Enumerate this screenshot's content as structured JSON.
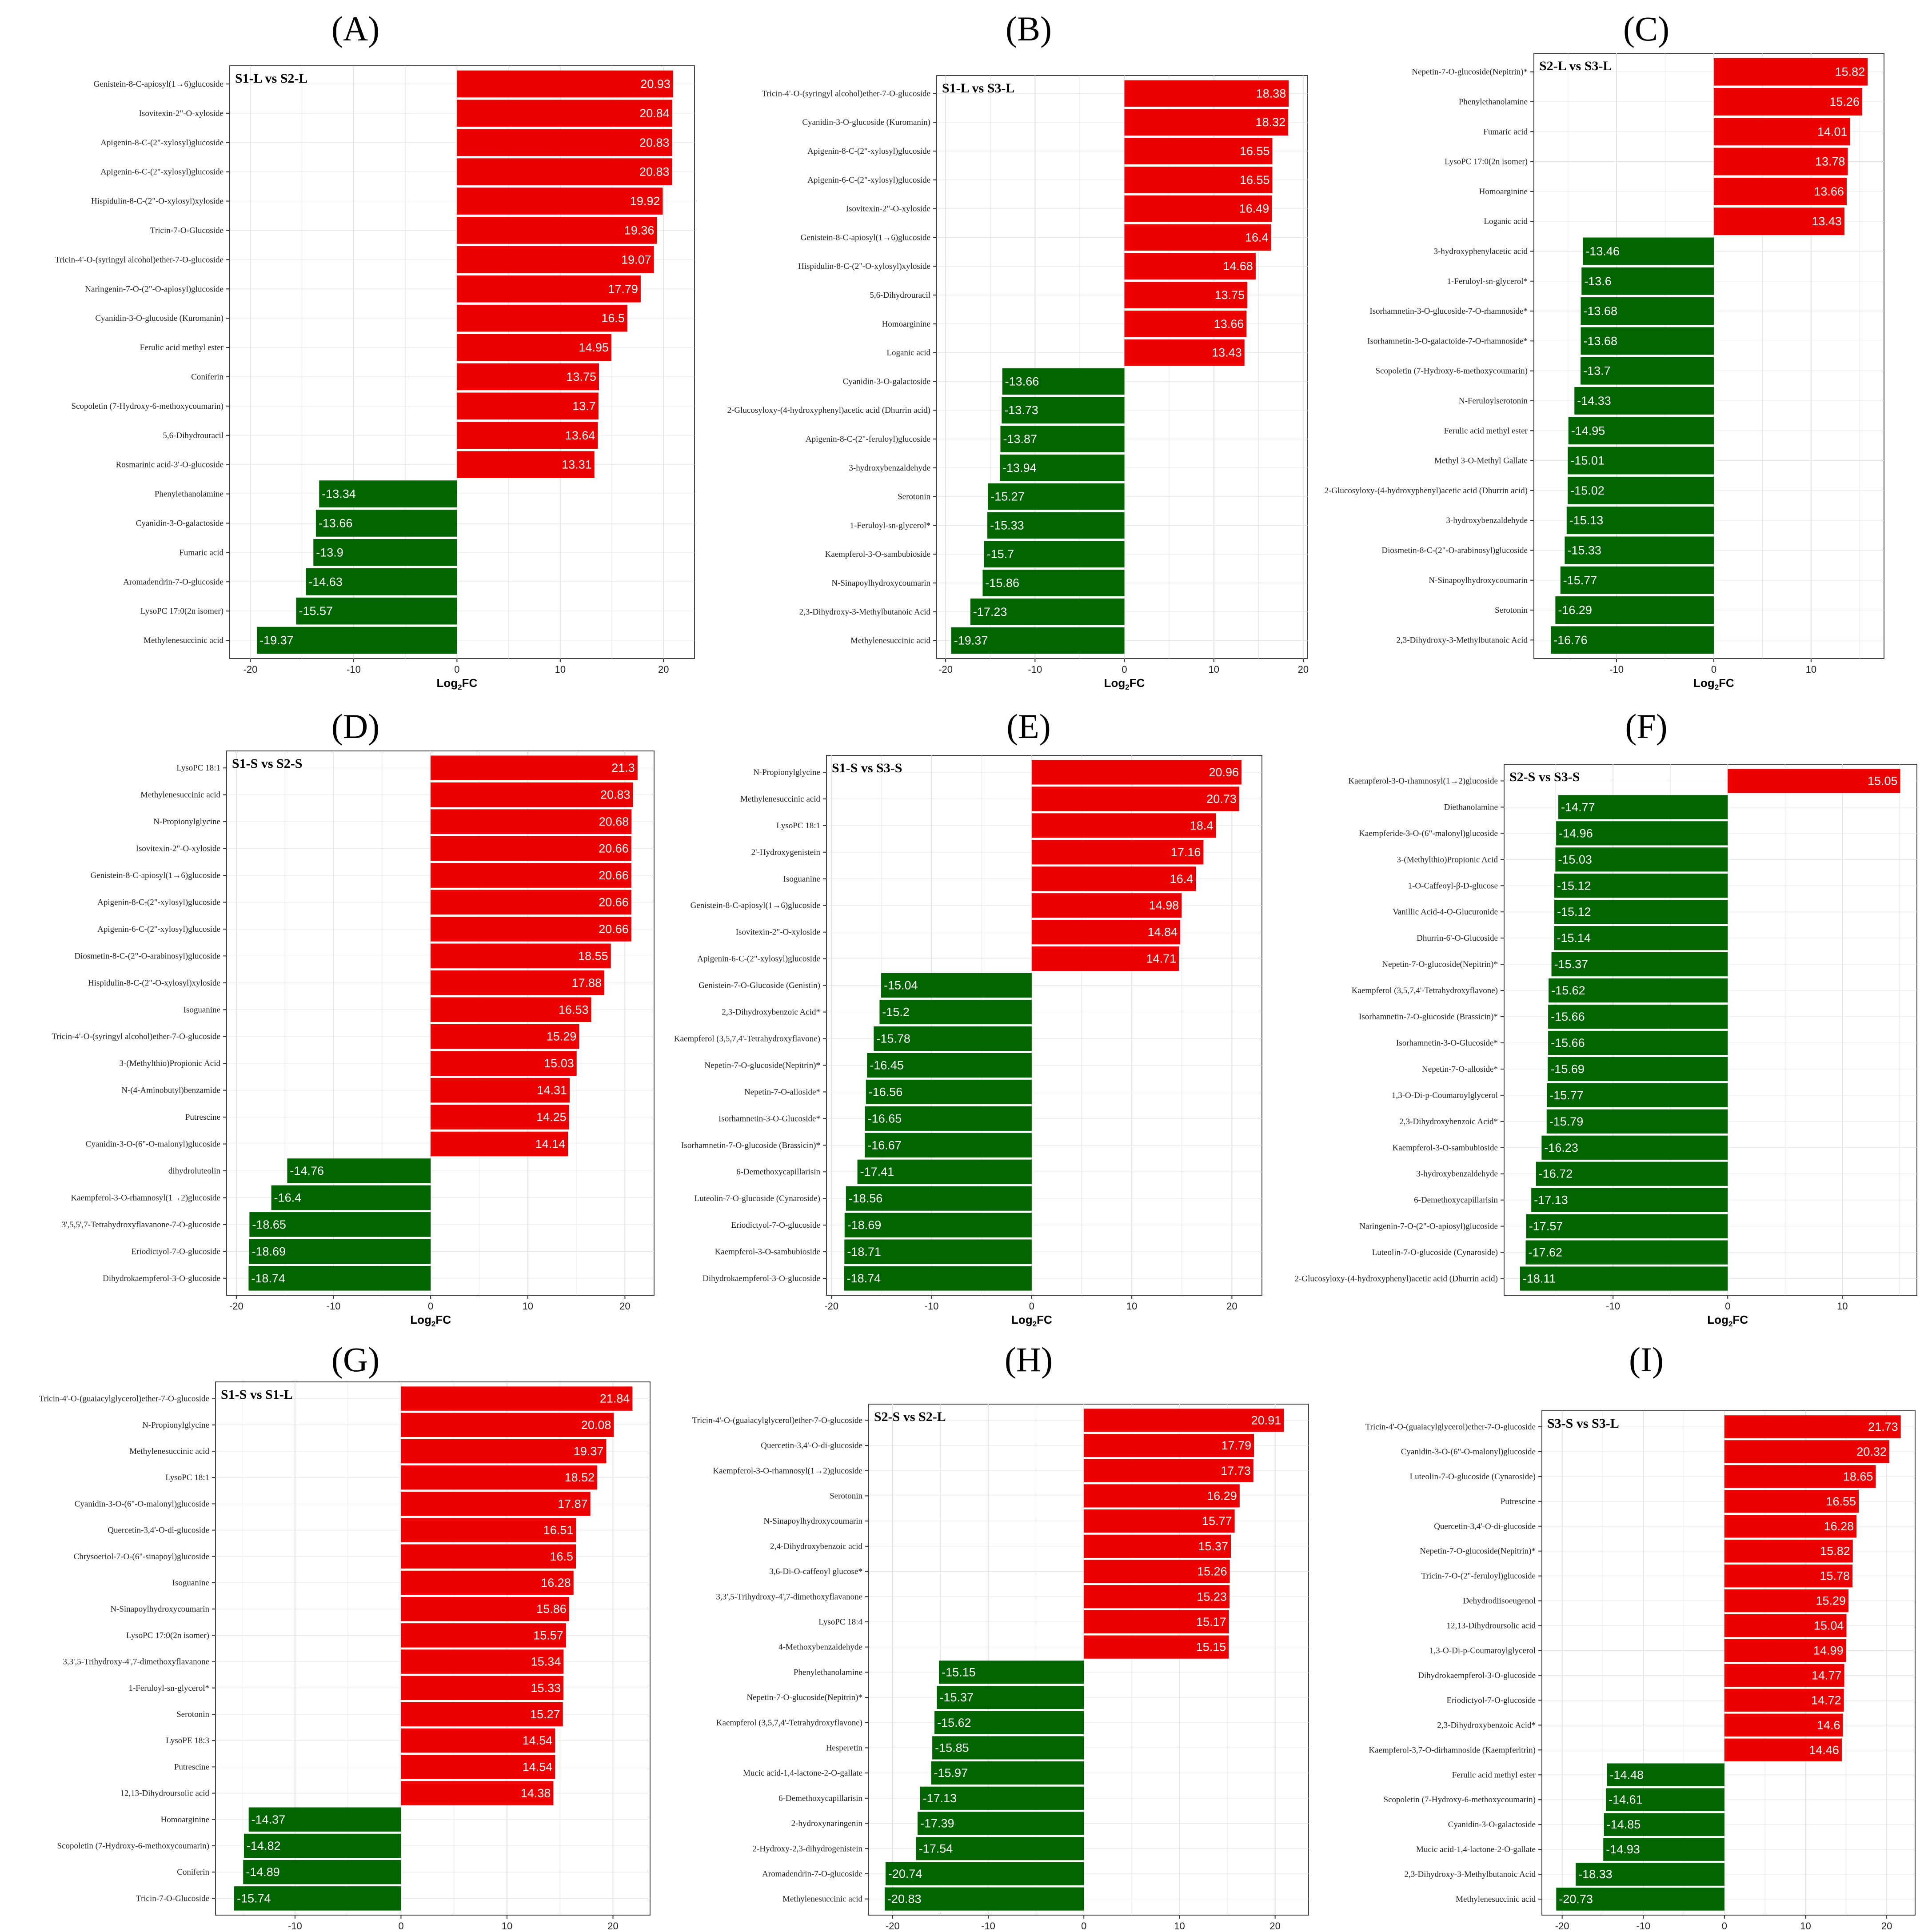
{
  "colors": {
    "up": "#ee0000",
    "down": "#006400",
    "grid": "#e3e3e3",
    "frame": "#444444"
  },
  "x_label_main": "Log",
  "x_label_sub": "2",
  "x_label_tail": "FC",
  "chart_data": [
    {
      "panel": "(A)",
      "title": "S1-L vs S2-L",
      "type": "bar",
      "orientation": "horizontal",
      "xlim": [
        -22,
        23
      ],
      "xticks": [
        -20,
        -10,
        0,
        10,
        20
      ],
      "categories": [
        "Genistein-8-C-apiosyl(1→6)glucoside",
        "Isovitexin-2\"-O-xyloside",
        "Apigenin-8-C-(2\"-xylosyl)glucoside",
        "Apigenin-6-C-(2\"-xylosyl)glucoside",
        "Hispidulin-8-C-(2\"-O-xylosyl)xyloside",
        "Tricin-7-O-Glucoside",
        "Tricin-4'-O-(syringyl alcohol)ether-7-O-glucoside",
        "Naringenin-7-O-(2\"-O-apiosyl)glucoside",
        "Cyanidin-3-O-glucoside (Kuromanin)",
        "Ferulic acid methyl ester",
        "Coniferin",
        "Scopoletin (7-Hydroxy-6-methoxycoumarin)",
        "5,6-Dihydrouracil",
        "Rosmarinic acid-3'-O-glucoside",
        "Phenylethanolamine",
        "Cyanidin-3-O-galactoside",
        "Fumaric acid",
        "Aromadendrin-7-O-glucoside",
        "LysoPC 17:0(2n isomer)",
        "Methylenesuccinic acid"
      ],
      "values": [
        20.93,
        20.84,
        20.83,
        20.83,
        19.92,
        19.36,
        19.07,
        17.79,
        16.5,
        14.95,
        13.75,
        13.7,
        13.64,
        13.31,
        -13.34,
        -13.66,
        -13.9,
        -14.63,
        -15.57,
        -19.37
      ],
      "labels": [
        "20.93",
        "20.84",
        "20.83",
        "20.83",
        "19.92",
        "19.36",
        "19.07",
        "17.79",
        "16.5",
        "14.95",
        "13.75",
        "13.7",
        "13.64",
        "13.31",
        "-13.34",
        "-13.66",
        "-13.9",
        "-14.63",
        "-15.57",
        "-19.37"
      ]
    },
    {
      "panel": "(B)",
      "title": "S1-L vs S3-L",
      "type": "bar",
      "orientation": "horizontal",
      "xlim": [
        -21,
        20.5
      ],
      "xticks": [
        -20,
        -10,
        0,
        10,
        20
      ],
      "categories": [
        "Tricin-4'-O-(syringyl alcohol)ether-7-O-glucoside",
        "Cyanidin-3-O-glucoside (Kuromanin)",
        "Apigenin-8-C-(2\"-xylosyl)glucoside",
        "Apigenin-6-C-(2\"-xylosyl)glucoside",
        "Isovitexin-2\"-O-xyloside",
        "Genistein-8-C-apiosyl(1→6)glucoside",
        "Hispidulin-8-C-(2\"-O-xylosyl)xyloside",
        "5,6-Dihydrouracil",
        "Homoarginine",
        "Loganic acid",
        "Cyanidin-3-O-galactoside",
        "2-Glucosyloxy-(4-hydroxyphenyl)acetic acid (Dhurrin acid)",
        "Apigenin-8-C-(2\"-feruloyl)glucoside",
        "3-hydroxybenzaldehyde",
        "Serotonin",
        "1-Feruloyl-sn-glycerol*",
        "Kaempferol-3-O-sambubioside",
        "N-Sinapoylhydroxycoumarin",
        "2,3-Dihydroxy-3-Methylbutanoic Acid",
        "Methylenesuccinic acid"
      ],
      "values": [
        18.38,
        18.32,
        16.55,
        16.55,
        16.49,
        16.4,
        14.68,
        13.75,
        13.66,
        13.43,
        -13.66,
        -13.73,
        -13.87,
        -13.94,
        -15.27,
        -15.33,
        -15.7,
        -15.86,
        -17.23,
        -19.37
      ],
      "labels": [
        "18.38",
        "18.32",
        "16.55",
        "16.55",
        "16.49",
        "16.4",
        "14.68",
        "13.75",
        "13.66",
        "13.43",
        "-13.66",
        "-13.73",
        "-13.87",
        "-13.94",
        "-15.27",
        "-15.33",
        "-15.7",
        "-15.86",
        "-17.23",
        "-19.37"
      ]
    },
    {
      "panel": "(C)",
      "title": "S2-L vs S3-L",
      "type": "bar",
      "orientation": "horizontal",
      "xlim": [
        -18.5,
        17.5
      ],
      "xticks": [
        -10,
        0,
        10
      ],
      "categories": [
        "Nepetin-7-O-glucoside(Nepitrin)*",
        "Phenylethanolamine",
        "Fumaric acid",
        "LysoPC 17:0(2n isomer)",
        "Homoarginine",
        "Loganic acid",
        "3-hydroxyphenylacetic acid",
        "1-Feruloyl-sn-glycerol*",
        "Isorhamnetin-3-O-glucoside-7-O-rhamnoside*",
        "Isorhamnetin-3-O-galactoide-7-O-rhamnoside*",
        "Scopoletin (7-Hydroxy-6-methoxycoumarin)",
        "N-Feruloylserotonin",
        "Ferulic acid methyl ester",
        "Methyl 3-O-Methyl Gallate",
        "2-Glucosyloxy-(4-hydroxyphenyl)acetic acid (Dhurrin acid)",
        "3-hydroxybenzaldehyde",
        "Diosmetin-8-C-(2\"-O-arabinosyl)glucoside",
        "N-Sinapoylhydroxycoumarin",
        "Serotonin",
        "2,3-Dihydroxy-3-Methylbutanoic Acid"
      ],
      "values": [
        15.82,
        15.26,
        14.01,
        13.78,
        13.66,
        13.43,
        -13.46,
        -13.6,
        -13.68,
        -13.68,
        -13.7,
        -14.33,
        -14.95,
        -15.01,
        -15.02,
        -15.13,
        -15.33,
        -15.77,
        -16.29,
        -16.76
      ],
      "labels": [
        "15.82",
        "15.26",
        "14.01",
        "13.78",
        "13.66",
        "13.43",
        "-13.46",
        "-13.6",
        "-13.68",
        "-13.68",
        "-13.7",
        "-14.33",
        "-14.95",
        "-15.01",
        "-15.02",
        "-15.13",
        "-15.33",
        "-15.77",
        "-16.29",
        "-16.76"
      ]
    },
    {
      "panel": "(D)",
      "title": "S1-S vs S2-S",
      "type": "bar",
      "orientation": "horizontal",
      "xlim": [
        -21,
        23
      ],
      "xticks": [
        -20,
        -10,
        0,
        10,
        20
      ],
      "categories": [
        "LysoPC 18:1",
        "Methylenesuccinic acid",
        "N-Propionylglycine",
        "Isovitexin-2\"-O-xyloside",
        "Genistein-8-C-apiosyl(1→6)glucoside",
        "Apigenin-8-C-(2\"-xylosyl)glucoside",
        "Apigenin-6-C-(2\"-xylosyl)glucoside",
        "Diosmetin-8-C-(2\"-O-arabinosyl)glucoside",
        "Hispidulin-8-C-(2\"-O-xylosyl)xyloside",
        "Isoguanine",
        "Tricin-4'-O-(syringyl alcohol)ether-7-O-glucoside",
        "3-(Methylthio)Propionic Acid",
        "N-(4-Aminobutyl)benzamide",
        "Putrescine",
        "Cyanidin-3-O-(6\"-O-malonyl)glucoside",
        "dihydroluteolin",
        "Kaempferol-3-O-rhamnosyl(1→2)glucoside",
        "3',5,5',7-Tetrahydroxyflavanone-7-O-glucoside",
        "Eriodictyol-7-O-glucoside",
        "Dihydrokaempferol-3-O-glucoside"
      ],
      "values": [
        21.3,
        20.83,
        20.68,
        20.66,
        20.66,
        20.66,
        20.66,
        18.55,
        17.88,
        16.53,
        15.29,
        15.03,
        14.31,
        14.25,
        14.14,
        -14.76,
        -16.4,
        -18.65,
        -18.69,
        -18.74
      ],
      "labels": [
        "21.3",
        "20.83",
        "20.68",
        "20.66",
        "20.66",
        "20.66",
        "20.66",
        "18.55",
        "17.88",
        "16.53",
        "15.29",
        "15.03",
        "14.31",
        "14.25",
        "14.14",
        "-14.76",
        "-16.4",
        "-18.65",
        "-18.69",
        "-18.74"
      ]
    },
    {
      "panel": "(E)",
      "title": "S1-S vs S3-S",
      "type": "bar",
      "orientation": "horizontal",
      "xlim": [
        -20.5,
        23
      ],
      "xticks": [
        -20,
        -10,
        0,
        10,
        20
      ],
      "categories": [
        "N-Propionylglycine",
        "Methylenesuccinic acid",
        "LysoPC 18:1",
        "2'-Hydroxygenistein",
        "Isoguanine",
        "Genistein-8-C-apiosyl(1→6)glucoside",
        "Isovitexin-2\"-O-xyloside",
        "Apigenin-6-C-(2\"-xylosyl)glucoside",
        "Genistein-7-O-Glucoside (Genistin)",
        "2,3-Dihydroxybenzoic Acid*",
        "Kaempferol (3,5,7,4'-Tetrahydroxyflavone)",
        "Nepetin-7-O-glucoside(Nepitrin)*",
        "Nepetin-7-O-alloside*",
        "Isorhamnetin-3-O-Glucoside*",
        "Isorhamnetin-7-O-glucoside (Brassicin)*",
        "6-Demethoxycapillarisin",
        "Luteolin-7-O-glucoside (Cynaroside)",
        "Eriodictyol-7-O-glucoside",
        "Kaempferol-3-O-sambubioside",
        "Dihydrokaempferol-3-O-glucoside"
      ],
      "values": [
        20.96,
        20.73,
        18.4,
        17.16,
        16.4,
        14.98,
        14.84,
        14.71,
        -15.04,
        -15.2,
        -15.78,
        -16.45,
        -16.56,
        -16.65,
        -16.67,
        -17.41,
        -18.56,
        -18.69,
        -18.71,
        -18.74
      ],
      "labels": [
        "20.96",
        "20.73",
        "18.4",
        "17.16",
        "16.4",
        "14.98",
        "14.84",
        "14.71",
        "-15.04",
        "-15.2",
        "-15.78",
        "-16.45",
        "-16.56",
        "-16.65",
        "-16.67",
        "-17.41",
        "-18.56",
        "-18.69",
        "-18.71",
        "-18.74"
      ]
    },
    {
      "panel": "(F)",
      "title": "S2-S vs S3-S",
      "type": "bar",
      "orientation": "horizontal",
      "xlim": [
        -19.5,
        16.5
      ],
      "xticks": [
        -10,
        0,
        10
      ],
      "categories": [
        "Kaempferol-3-O-rhamnosyl(1→2)glucoside",
        "Diethanolamine",
        "Kaempferide-3-O-(6\"-malonyl)glucoside",
        "3-(Methylthio)Propionic Acid",
        "1-O-Caffeoyl-β-D-glucose",
        "Vanillic Acid-4-O-Glucuronide",
        "Dhurrin-6'-O-Glucoside",
        "Nepetin-7-O-glucoside(Nepitrin)*",
        "Kaempferol (3,5,7,4'-Tetrahydroxyflavone)",
        "Isorhamnetin-7-O-glucoside (Brassicin)*",
        "Isorhamnetin-3-O-Glucoside*",
        "Nepetin-7-O-alloside*",
        "1,3-O-Di-p-Coumaroylglycerol",
        "2,3-Dihydroxybenzoic Acid*",
        "Kaempferol-3-O-sambubioside",
        "3-hydroxybenzaldehyde",
        "6-Demethoxycapillarisin",
        "Naringenin-7-O-(2\"-O-apiosyl)glucoside",
        "Luteolin-7-O-glucoside (Cynaroside)",
        "2-Glucosyloxy-(4-hydroxyphenyl)acetic acid (Dhurrin acid)"
      ],
      "values": [
        15.05,
        -14.77,
        -14.96,
        -15.03,
        -15.12,
        -15.12,
        -15.14,
        -15.37,
        -15.62,
        -15.66,
        -15.66,
        -15.69,
        -15.77,
        -15.79,
        -16.23,
        -16.72,
        -17.13,
        -17.57,
        -17.62,
        -18.11
      ],
      "labels": [
        "15.05",
        "-14.77",
        "-14.96",
        "-15.03",
        "-15.12",
        "-15.12",
        "-15.14",
        "-15.37",
        "-15.62",
        "-15.66",
        "-15.66",
        "-15.69",
        "-15.77",
        "-15.79",
        "-16.23",
        "-16.72",
        "-17.13",
        "-17.57",
        "-17.62",
        "-18.11"
      ]
    },
    {
      "panel": "(G)",
      "title": "S1-S vs S1-L",
      "type": "bar",
      "orientation": "horizontal",
      "xlim": [
        -17.5,
        23.5
      ],
      "xticks": [
        -10,
        0,
        10,
        20
      ],
      "categories": [
        "Tricin-4'-O-(guaiacylglycerol)ether-7-O-glucoside",
        "N-Propionylglycine",
        "Methylenesuccinic acid",
        "LysoPC 18:1",
        "Cyanidin-3-O-(6\"-O-malonyl)glucoside",
        "Quercetin-3,4'-O-di-glucoside",
        "Chrysoeriol-7-O-(6\"-sinapoyl)glucoside",
        "Isoguanine",
        "N-Sinapoylhydroxycoumarin",
        "LysoPC 17:0(2n isomer)",
        "3,3',5-Trihydroxy-4',7-dimethoxyflavanone",
        "1-Feruloyl-sn-glycerol*",
        "Serotonin",
        "LysoPE 18:3",
        "Putrescine",
        "12,13-Dihydroursolic acid",
        "Homoarginine",
        "Scopoletin (7-Hydroxy-6-methoxycoumarin)",
        "Coniferin",
        "Tricin-7-O-Glucoside"
      ],
      "values": [
        21.84,
        20.08,
        19.37,
        18.52,
        17.87,
        16.51,
        16.5,
        16.28,
        15.86,
        15.57,
        15.34,
        15.33,
        15.27,
        14.54,
        14.54,
        14.38,
        -14.37,
        -14.82,
        -14.89,
        -15.74
      ],
      "labels": [
        "21.84",
        "20.08",
        "19.37",
        "18.52",
        "17.87",
        "16.51",
        "16.5",
        "16.28",
        "15.86",
        "15.57",
        "15.34",
        "15.33",
        "15.27",
        "14.54",
        "14.54",
        "14.38",
        "-14.37",
        "-14.82",
        "-14.89",
        "-15.74"
      ]
    },
    {
      "panel": "(H)",
      "title": "S2-S vs S2-L",
      "type": "bar",
      "orientation": "horizontal",
      "xlim": [
        -22.5,
        23.5
      ],
      "xticks": [
        -20,
        -10,
        0,
        10,
        20
      ],
      "categories": [
        "Tricin-4'-O-(guaiacylglycerol)ether-7-O-glucoside",
        "Quercetin-3,4'-O-di-glucoside",
        "Kaempferol-3-O-rhamnosyl(1→2)glucoside",
        "Serotonin",
        "N-Sinapoylhydroxycoumarin",
        "2,4-Dihydroxybenzoic acid",
        "3,6-Di-O-caffeoyl glucose*",
        "3,3',5-Trihydroxy-4',7-dimethoxyflavanone",
        "LysoPC 18:4",
        "4-Methoxybenzaldehyde",
        "Phenylethanolamine",
        "Nepetin-7-O-glucoside(Nepitrin)*",
        "Kaempferol (3,5,7,4'-Tetrahydroxyflavone)",
        "Hesperetin",
        "Mucic acid-1,4-lactone-2-O-gallate",
        "6-Demethoxycapillarisin",
        "2-hydroxynaringenin",
        "2-Hydroxy-2,3-dihydrogenistein",
        "Aromadendrin-7-O-glucoside",
        "Methylenesuccinic acid"
      ],
      "values": [
        20.91,
        17.79,
        17.73,
        16.29,
        15.77,
        15.37,
        15.26,
        15.23,
        15.17,
        15.15,
        -15.15,
        -15.37,
        -15.62,
        -15.85,
        -15.97,
        -17.13,
        -17.39,
        -17.54,
        -20.74,
        -20.83
      ],
      "labels": [
        "20.91",
        "17.79",
        "17.73",
        "16.29",
        "15.77",
        "15.37",
        "15.26",
        "15.23",
        "15.17",
        "15.15",
        "-15.15",
        "-15.37",
        "-15.62",
        "-15.85",
        "-15.97",
        "-17.13",
        "-17.39",
        "-17.54",
        "-20.74",
        "-20.83"
      ]
    },
    {
      "panel": "(I)",
      "title": "S3-S vs S3-L",
      "type": "bar",
      "orientation": "horizontal",
      "xlim": [
        -22.5,
        23.5
      ],
      "xticks": [
        -20,
        -10,
        0,
        10,
        20
      ],
      "categories": [
        "Tricin-4'-O-(guaiacylglycerol)ether-7-O-glucoside",
        "Cyanidin-3-O-(6\"-O-malonyl)glucoside",
        "Luteolin-7-O-glucoside (Cynaroside)",
        "Putrescine",
        "Quercetin-3,4'-O-di-glucoside",
        "Nepetin-7-O-glucoside(Nepitrin)*",
        "Tricin-7-O-(2\"-feruloyl)glucoside",
        "Dehydrodiisoeugenol",
        "12,13-Dihydroursolic acid",
        "1,3-O-Di-p-Coumaroylglycerol",
        "Dihydrokaempferol-3-O-glucoside",
        "Eriodictyol-7-O-glucoside",
        "2,3-Dihydroxybenzoic Acid*",
        "Kaempferol-3,7-O-dirhamnoside (Kaempferitrin)",
        "Ferulic acid methyl ester",
        "Scopoletin (7-Hydroxy-6-methoxycoumarin)",
        "Cyanidin-3-O-galactoside",
        "Mucic acid-1,4-lactone-2-O-gallate",
        "2,3-Dihydroxy-3-Methylbutanoic Acid",
        "Methylenesuccinic acid"
      ],
      "values": [
        21.73,
        20.32,
        18.65,
        16.55,
        16.28,
        15.82,
        15.78,
        15.29,
        15.04,
        14.99,
        14.77,
        14.72,
        14.6,
        14.46,
        -14.48,
        -14.61,
        -14.85,
        -14.93,
        -18.33,
        -20.73
      ],
      "labels": [
        "21.73",
        "20.32",
        "18.65",
        "16.55",
        "16.28",
        "15.82",
        "15.78",
        "15.29",
        "15.04",
        "14.99",
        "14.77",
        "14.72",
        "14.6",
        "14.46",
        "-14.48",
        "-14.61",
        "-14.85",
        "-14.93",
        "-18.33",
        "-20.73"
      ]
    }
  ]
}
